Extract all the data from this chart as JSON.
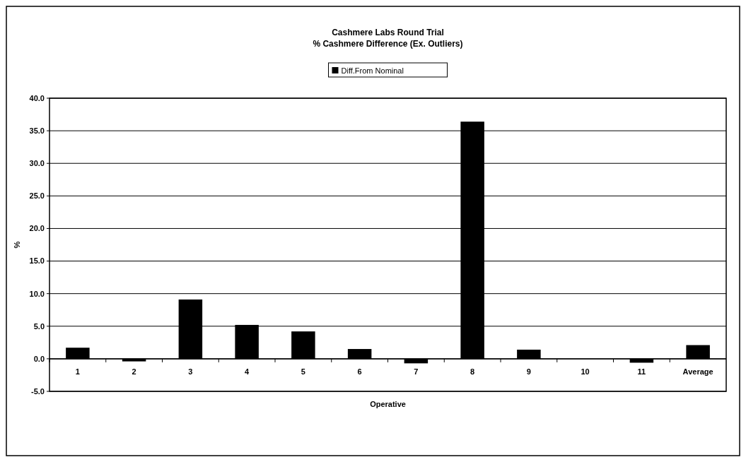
{
  "chart_data": {
    "type": "bar",
    "title": "Cashmere Labs Round Trial",
    "subtitle": "% Cashmere Difference (Ex. Outliers)",
    "xlabel": "Operative",
    "ylabel": "%",
    "categories": [
      "1",
      "2",
      "3",
      "4",
      "5",
      "6",
      "7",
      "8",
      "9",
      "10",
      "11",
      "Average"
    ],
    "series": [
      {
        "name": "Diff.From Nominal",
        "color": "#000000",
        "values": [
          1.7,
          -0.4,
          9.1,
          5.2,
          4.2,
          1.5,
          -0.7,
          36.4,
          1.4,
          0,
          -0.6,
          2.1
        ]
      }
    ],
    "ylim": [
      -5,
      40
    ],
    "yticks": [
      {
        "value": -5,
        "label": "-5.0"
      },
      {
        "value": 0,
        "label": "0.0"
      },
      {
        "value": 5,
        "label": "5.0"
      },
      {
        "value": 10,
        "label": "10.0"
      },
      {
        "value": 15,
        "label": "15.0"
      },
      {
        "value": 20,
        "label": "20.0"
      },
      {
        "value": 25,
        "label": "25.0"
      },
      {
        "value": 30,
        "label": "30.0"
      },
      {
        "value": 35,
        "label": "35.0"
      },
      {
        "value": 40,
        "label": "40.0"
      }
    ],
    "grid": "y",
    "legend": "top"
  }
}
